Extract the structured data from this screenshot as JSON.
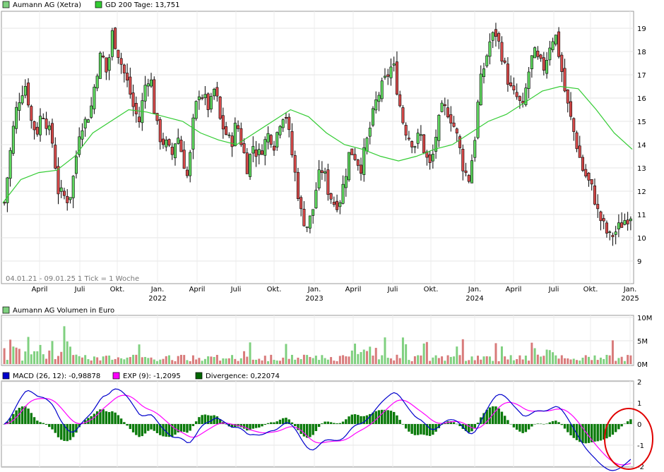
{
  "legend_price": [
    {
      "label": "Aumann AG (Xetra)",
      "color": "#7fd07f"
    },
    {
      "label": "GD 200 Tage: 13,751",
      "color": "#33cc33"
    }
  ],
  "legend_volume": [
    {
      "label": "Aumann AG Volumen in Euro",
      "color": "#7fd07f"
    }
  ],
  "legend_macd": [
    {
      "label": "MACD (26, 12): -0,98878",
      "color": "#0000cc"
    },
    {
      "label": "EXP (9): -1,2095",
      "color": "#ff00ff"
    },
    {
      "label": "Divergence: 0,22074",
      "color": "#006600"
    }
  ],
  "range_label": "04.01.21 - 09.01.25",
  "tick_note": "1 Tick = 1 Woche",
  "month_labels": [
    "April",
    "Juli",
    "Okt.",
    "Jan.",
    "April",
    "Juli",
    "Okt.",
    "Jan.",
    "April",
    "Juli",
    "Okt.",
    "Jan.",
    "April",
    "Juli",
    "Okt.",
    "Jan."
  ],
  "year_labels": [
    "2022",
    "2023",
    "2024",
    "2025"
  ],
  "chart_data": [
    {
      "type": "candlestick",
      "name": "Aumann AG (Xetra)",
      "x_range": [
        "2021-01-04",
        "2025-01-09"
      ],
      "ylim": [
        9,
        19.5
      ],
      "yticks": [
        "9",
        "10",
        "11",
        "12",
        "13",
        "14",
        "15",
        "16",
        "17",
        "18",
        "19"
      ],
      "close_weekly_approx": [
        11.5,
        13.5,
        15.3,
        16.2,
        16.6,
        15.0,
        14.5,
        15.5,
        14.8,
        14.0,
        12.0,
        11.8,
        11.6,
        12.9,
        14.8,
        15.0,
        15.5,
        17.0,
        18.0,
        17.0,
        18.8,
        18.0,
        17.2,
        16.5,
        15.5,
        15.0,
        16.5,
        17.1,
        15.0,
        14.2,
        14.0,
        13.5,
        14.5,
        13.5,
        12.5,
        15.0,
        16.3,
        16.0,
        15.5,
        16.5,
        15.0,
        14.5,
        14.0,
        15.0,
        14.0,
        13.0,
        14.0,
        13.5,
        14.0,
        14.5,
        14.0,
        15.0,
        15.5,
        14.0,
        12.5,
        11.0,
        10.5,
        11.0,
        12.5,
        13.0,
        12.0,
        11.5,
        11.5,
        12.5,
        13.8,
        13.5,
        13.0,
        14.0,
        15.0,
        16.0,
        16.5,
        17.0,
        17.5,
        16.0,
        14.8,
        14.3,
        14.0,
        14.5,
        13.5,
        13.0,
        14.5,
        15.5,
        15.5,
        15.0,
        14.2,
        13.0,
        12.5,
        14.0,
        16.5,
        17.5,
        18.5,
        18.8,
        18.0,
        17.0,
        16.2,
        16.0,
        15.5,
        17.0,
        18.0,
        17.5,
        17.3,
        18.3,
        18.8,
        17.5,
        16.0,
        15.0,
        14.0,
        13.0,
        12.5,
        12.0,
        11.0,
        10.5,
        10.0,
        10.2,
        10.5,
        10.8,
        11.0
      ],
      "overlay": {
        "name": "GD 200 Tage",
        "color": "#33cc33",
        "values_approx": [
          11.5,
          12.5,
          12.8,
          12.9,
          13.5,
          14.5,
          15.0,
          15.5,
          15.4,
          15.2,
          15.0,
          14.5,
          14.2,
          14.0,
          14.5,
          15.0,
          15.5,
          15.2,
          14.5,
          14.0,
          13.8,
          13.5,
          13.3,
          13.5,
          13.8,
          14.0,
          14.5,
          15.0,
          15.3,
          15.8,
          16.3,
          16.5,
          16.4,
          15.5,
          14.5,
          13.8
        ]
      }
    },
    {
      "type": "bar",
      "name": "Aumann AG Volumen in Euro",
      "yticks": [
        "0M",
        "5M",
        "10M"
      ],
      "ylim": [
        0,
        10
      ]
    },
    {
      "type": "line",
      "name": "MACD",
      "yticks": [
        "-2",
        "-1",
        "0",
        "1",
        "2"
      ],
      "ylim": [
        -2,
        2
      ],
      "series": [
        {
          "name": "MACD (26, 12)",
          "last": -0.98878,
          "color": "#0000cc"
        },
        {
          "name": "EXP (9)",
          "last": -1.2095,
          "color": "#ff00ff"
        },
        {
          "name": "Divergence",
          "last": 0.22074,
          "color": "#006600"
        }
      ]
    }
  ]
}
